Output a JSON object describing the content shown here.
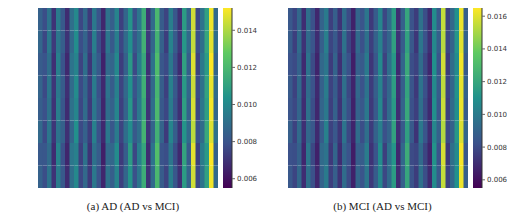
{
  "chart_data": [
    {
      "type": "heatmap",
      "title": "(a) AD (AD vs MCI)",
      "tick_labels": false,
      "colorbar_range": [
        0.0055,
        0.0152
      ],
      "colorbar_ticks": [
        {
          "value": 0.006,
          "label": "0.006"
        },
        {
          "value": 0.008,
          "label": "0.008"
        },
        {
          "value": 0.01,
          "label": "0.010"
        },
        {
          "value": 0.012,
          "label": "0.012"
        },
        {
          "value": 0.014,
          "label": "0.014"
        }
      ],
      "cells": [
        [
          0.0085,
          0.0078,
          0.0092,
          0.007,
          0.0095,
          0.0082,
          0.0068,
          0.009,
          0.01,
          0.0076,
          0.0088,
          0.0072,
          0.0094,
          0.008,
          0.0066,
          0.0091,
          0.0084,
          0.0098,
          0.0074,
          0.0087,
          0.0105,
          0.0079,
          0.0093,
          0.0115,
          0.007,
          0.0089,
          0.012,
          0.0083,
          0.0075,
          0.0096,
          0.0081,
          0.0069,
          0.0108,
          0.0086,
          0.0145,
          0.0077,
          0.0092,
          0.011,
          0.015,
          0.0088
        ],
        [
          0.0087,
          0.0076,
          0.0094,
          0.0072,
          0.0093,
          0.0084,
          0.007,
          0.0088,
          0.0102,
          0.0078,
          0.0086,
          0.0074,
          0.0096,
          0.0078,
          0.0068,
          0.0093,
          0.0082,
          0.0096,
          0.0076,
          0.0089,
          0.0103,
          0.0081,
          0.0091,
          0.0117,
          0.0072,
          0.0087,
          0.0118,
          0.0085,
          0.0073,
          0.0098,
          0.0083,
          0.0071,
          0.0106,
          0.0088,
          0.0143,
          0.0079,
          0.009,
          0.0112,
          0.0148,
          0.009
        ],
        [
          0.0083,
          0.008,
          0.009,
          0.0069,
          0.0097,
          0.008,
          0.0067,
          0.0092,
          0.0098,
          0.0075,
          0.009,
          0.0071,
          0.0092,
          0.0082,
          0.0065,
          0.0089,
          0.0086,
          0.01,
          0.0073,
          0.0085,
          0.0107,
          0.0077,
          0.0095,
          0.0113,
          0.0069,
          0.0091,
          0.0122,
          0.0081,
          0.0077,
          0.0094,
          0.0079,
          0.0068,
          0.011,
          0.0084,
          0.0147,
          0.0075,
          0.0094,
          0.0108,
          0.0152,
          0.0086
        ],
        [
          0.0086,
          0.0077,
          0.0093,
          0.0071,
          0.0094,
          0.0083,
          0.0069,
          0.0089,
          0.0101,
          0.0077,
          0.0087,
          0.0073,
          0.0095,
          0.0079,
          0.0067,
          0.0092,
          0.0083,
          0.0097,
          0.0075,
          0.0088,
          0.0104,
          0.008,
          0.0092,
          0.0116,
          0.0071,
          0.0088,
          0.0119,
          0.0084,
          0.0074,
          0.0097,
          0.0082,
          0.007,
          0.0107,
          0.0087,
          0.0144,
          0.0078,
          0.0091,
          0.0111,
          0.0149,
          0.0089
        ],
        [
          0.0084,
          0.0079,
          0.0091,
          0.007,
          0.0096,
          0.0081,
          0.0068,
          0.0091,
          0.0099,
          0.0076,
          0.0089,
          0.0072,
          0.0093,
          0.0081,
          0.0066,
          0.009,
          0.0085,
          0.0099,
          0.0074,
          0.0086,
          0.0106,
          0.0078,
          0.0094,
          0.0114,
          0.007,
          0.009,
          0.0121,
          0.0082,
          0.0076,
          0.0095,
          0.008,
          0.0069,
          0.0109,
          0.0085,
          0.0146,
          0.0076,
          0.0093,
          0.0109,
          0.0151,
          0.0087
        ],
        [
          0.0088,
          0.0077,
          0.0093,
          0.0071,
          0.0092,
          0.0085,
          0.0069,
          0.0087,
          0.0103,
          0.0077,
          0.0085,
          0.0073,
          0.0097,
          0.0079,
          0.0067,
          0.0094,
          0.0081,
          0.0095,
          0.0075,
          0.009,
          0.0102,
          0.0082,
          0.009,
          0.0118,
          0.0071,
          0.0086,
          0.0117,
          0.0086,
          0.0072,
          0.0099,
          0.0084,
          0.007,
          0.0105,
          0.0089,
          0.0142,
          0.008,
          0.0089,
          0.0113,
          0.0147,
          0.0091
        ],
        [
          0.0082,
          0.0081,
          0.0089,
          0.0068,
          0.0098,
          0.0079,
          0.0066,
          0.0093,
          0.0097,
          0.0074,
          0.0091,
          0.007,
          0.0091,
          0.0083,
          0.0064,
          0.0088,
          0.0087,
          0.0101,
          0.0072,
          0.0084,
          0.0108,
          0.0076,
          0.0096,
          0.0112,
          0.0068,
          0.0092,
          0.0123,
          0.008,
          0.0078,
          0.0093,
          0.0078,
          0.0067,
          0.0111,
          0.0083,
          0.0148,
          0.0074,
          0.0095,
          0.0107,
          0.0153,
          0.0085
        ],
        [
          0.0085,
          0.0078,
          0.0092,
          0.007,
          0.0095,
          0.0082,
          0.0068,
          0.009,
          0.01,
          0.0076,
          0.0088,
          0.0072,
          0.0094,
          0.008,
          0.0066,
          0.0091,
          0.0084,
          0.0098,
          0.0074,
          0.0087,
          0.0105,
          0.0079,
          0.0093,
          0.0115,
          0.007,
          0.0089,
          0.012,
          0.0083,
          0.0075,
          0.0096,
          0.0081,
          0.0069,
          0.0108,
          0.0086,
          0.0145,
          0.0077,
          0.0092,
          0.011,
          0.015,
          0.0088
        ]
      ]
    },
    {
      "type": "heatmap",
      "title": "(b) MCI (AD vs MCI)",
      "tick_labels": false,
      "colorbar_range": [
        0.0055,
        0.0165
      ],
      "colorbar_ticks": [
        {
          "value": 0.006,
          "label": "0.006"
        },
        {
          "value": 0.008,
          "label": "0.008"
        },
        {
          "value": 0.01,
          "label": "0.010"
        },
        {
          "value": 0.012,
          "label": "0.012"
        },
        {
          "value": 0.014,
          "label": "0.014"
        },
        {
          "value": 0.016,
          "label": "0.016"
        }
      ],
      "cells": [
        [
          0.0085,
          0.0078,
          0.0092,
          0.007,
          0.0095,
          0.0082,
          0.0068,
          0.009,
          0.01,
          0.0076,
          0.0088,
          0.0072,
          0.0094,
          0.008,
          0.0066,
          0.0091,
          0.0084,
          0.0098,
          0.0074,
          0.0087,
          0.0105,
          0.0079,
          0.0093,
          0.0115,
          0.007,
          0.0089,
          0.012,
          0.0083,
          0.0075,
          0.0096,
          0.0081,
          0.0069,
          0.0108,
          0.0086,
          0.0155,
          0.0077,
          0.0092,
          0.011,
          0.0162,
          0.0088
        ],
        [
          0.0087,
          0.0076,
          0.0094,
          0.0072,
          0.0093,
          0.0084,
          0.007,
          0.0088,
          0.0102,
          0.0078,
          0.0086,
          0.0074,
          0.0096,
          0.0078,
          0.0068,
          0.0093,
          0.0082,
          0.0096,
          0.0076,
          0.0089,
          0.0103,
          0.0081,
          0.0091,
          0.0117,
          0.0072,
          0.0087,
          0.0118,
          0.0085,
          0.0073,
          0.0098,
          0.0083,
          0.0071,
          0.0106,
          0.0088,
          0.0153,
          0.0079,
          0.009,
          0.0112,
          0.016,
          0.009
        ],
        [
          0.0083,
          0.008,
          0.009,
          0.0069,
          0.0097,
          0.008,
          0.0067,
          0.0092,
          0.0098,
          0.0075,
          0.009,
          0.0071,
          0.0092,
          0.0082,
          0.0065,
          0.0089,
          0.0086,
          0.01,
          0.0073,
          0.0085,
          0.0107,
          0.0077,
          0.0095,
          0.0113,
          0.0069,
          0.0091,
          0.0122,
          0.0081,
          0.0077,
          0.0094,
          0.0079,
          0.0068,
          0.011,
          0.0084,
          0.0157,
          0.0075,
          0.0094,
          0.0108,
          0.0163,
          0.0086
        ],
        [
          0.0086,
          0.0077,
          0.0093,
          0.0071,
          0.0094,
          0.0083,
          0.0069,
          0.0089,
          0.0101,
          0.0077,
          0.0087,
          0.0073,
          0.0095,
          0.0079,
          0.0067,
          0.0092,
          0.0083,
          0.0097,
          0.0075,
          0.0088,
          0.0104,
          0.008,
          0.0092,
          0.0116,
          0.0071,
          0.0088,
          0.0119,
          0.0084,
          0.0074,
          0.0097,
          0.0082,
          0.007,
          0.0107,
          0.0087,
          0.0154,
          0.0078,
          0.0091,
          0.0111,
          0.0161,
          0.0089
        ],
        [
          0.0084,
          0.0079,
          0.0091,
          0.007,
          0.0096,
          0.0081,
          0.0068,
          0.0091,
          0.0099,
          0.0076,
          0.0089,
          0.0072,
          0.0093,
          0.0081,
          0.0066,
          0.009,
          0.0085,
          0.0099,
          0.0074,
          0.0086,
          0.0106,
          0.0078,
          0.0094,
          0.0114,
          0.007,
          0.009,
          0.0121,
          0.0082,
          0.0076,
          0.0095,
          0.008,
          0.0069,
          0.0109,
          0.0085,
          0.0156,
          0.0076,
          0.0093,
          0.0109,
          0.0162,
          0.0087
        ],
        [
          0.0088,
          0.0077,
          0.0093,
          0.0071,
          0.0092,
          0.0085,
          0.0069,
          0.0087,
          0.0103,
          0.0077,
          0.0085,
          0.0073,
          0.0097,
          0.0079,
          0.0067,
          0.0094,
          0.0081,
          0.0095,
          0.0075,
          0.009,
          0.0102,
          0.0082,
          0.009,
          0.0118,
          0.0071,
          0.0086,
          0.0117,
          0.0086,
          0.0072,
          0.0099,
          0.0084,
          0.007,
          0.0105,
          0.0089,
          0.0152,
          0.008,
          0.0089,
          0.0113,
          0.0159,
          0.0091
        ],
        [
          0.0082,
          0.0081,
          0.0089,
          0.0068,
          0.0098,
          0.0079,
          0.0066,
          0.0093,
          0.0097,
          0.0074,
          0.0091,
          0.007,
          0.0091,
          0.0083,
          0.0064,
          0.0088,
          0.0087,
          0.0101,
          0.0072,
          0.0084,
          0.0108,
          0.0076,
          0.0096,
          0.0112,
          0.0068,
          0.0092,
          0.0123,
          0.008,
          0.0078,
          0.0093,
          0.0078,
          0.0067,
          0.0111,
          0.0083,
          0.0158,
          0.0074,
          0.0095,
          0.0107,
          0.0164,
          0.0085
        ],
        [
          0.0085,
          0.0078,
          0.0092,
          0.007,
          0.0095,
          0.0082,
          0.0068,
          0.009,
          0.01,
          0.0076,
          0.0088,
          0.0072,
          0.0094,
          0.008,
          0.0066,
          0.0091,
          0.0084,
          0.0098,
          0.0074,
          0.0087,
          0.0105,
          0.0079,
          0.0093,
          0.0115,
          0.007,
          0.0089,
          0.012,
          0.0083,
          0.0075,
          0.0096,
          0.0081,
          0.0069,
          0.0108,
          0.0086,
          0.0155,
          0.0077,
          0.0092,
          0.011,
          0.0162,
          0.0088
        ]
      ]
    }
  ]
}
